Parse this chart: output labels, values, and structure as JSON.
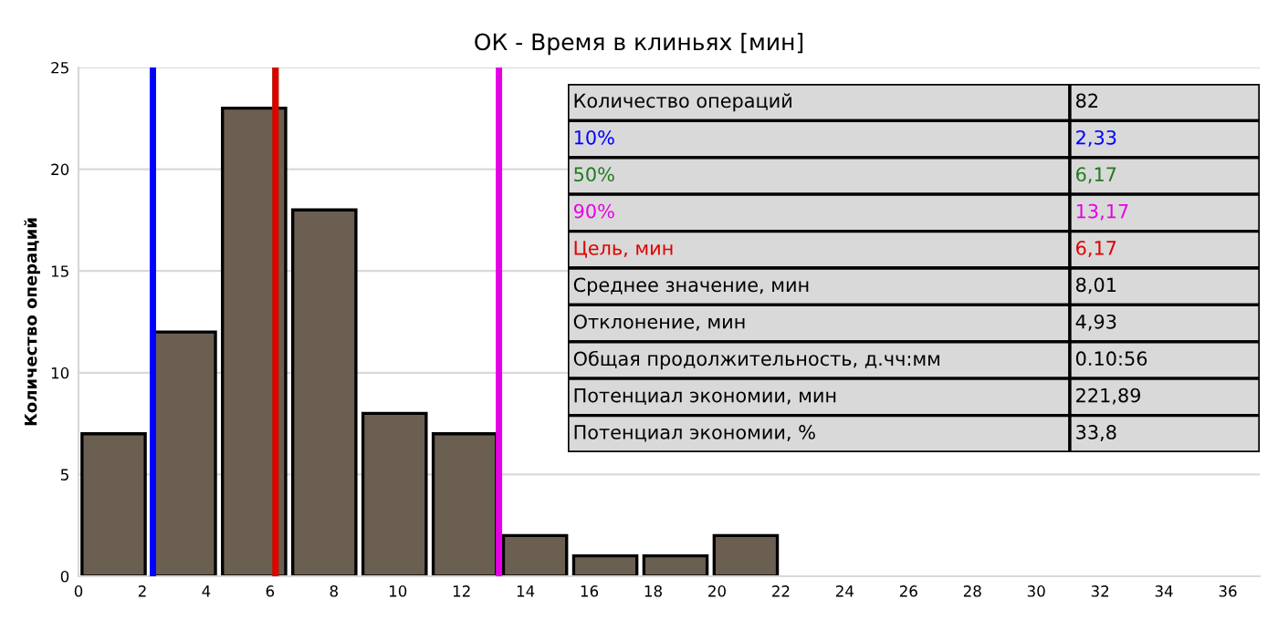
{
  "chart_data": {
    "type": "histogram",
    "title": "ОК - Время в клиньях [мин]",
    "ylabel": "Количество операций",
    "bins": [
      0,
      2.2,
      4.4,
      6.6,
      8.8,
      11,
      13.2,
      15.4,
      17.6,
      19.8,
      22
    ],
    "values": [
      7,
      12,
      23,
      18,
      8,
      7,
      2,
      1,
      1,
      2
    ],
    "color": "#6b5f52",
    "xlim": [
      0,
      37
    ],
    "xticks": [
      0,
      2,
      4,
      6,
      8,
      10,
      12,
      14,
      16,
      18,
      20,
      22,
      24,
      26,
      28,
      30,
      32,
      34,
      36
    ],
    "ylim": [
      0,
      25
    ],
    "yticks": [
      0,
      5,
      10,
      15,
      20,
      25
    ],
    "grid": "y",
    "ref_lines": [
      {
        "axis": "x",
        "value": 2.33,
        "color": "#0000ff"
      },
      {
        "axis": "x",
        "value": 6.17,
        "color": "#1e7b1e"
      },
      {
        "axis": "x",
        "value": 13.17,
        "color": "#e600e6"
      },
      {
        "axis": "x",
        "value": 6.17,
        "color": "#e00000"
      }
    ],
    "annotations": [
      "Количество операций",
      "82",
      "10%",
      "2,33",
      "50%",
      "6,17",
      "90%",
      "13,17",
      "Цель, мин",
      "6,17",
      "Среднее значение, мин",
      "8,01",
      "Отклонение, мин",
      "4,93",
      "Общая продолжительность, д.чч:мм",
      "0.10:56",
      "Потенциал экономии, мин",
      "221,89",
      "Потенциал экономии, %",
      "33,8"
    ]
  }
}
